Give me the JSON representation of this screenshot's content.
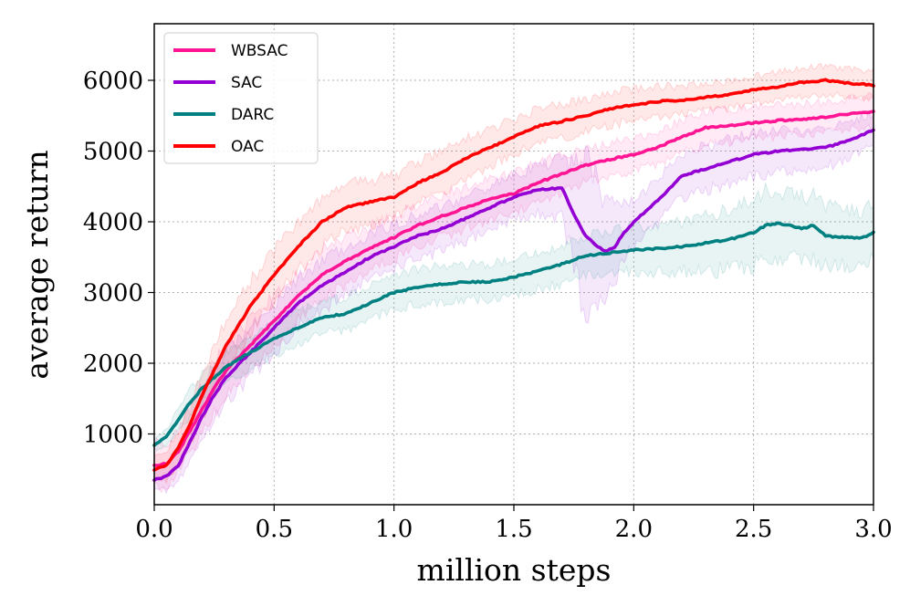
{
  "chart_data": {
    "type": "line",
    "title": "",
    "xlabel": "million steps",
    "ylabel": "average return",
    "xlim": [
      0.0,
      3.0
    ],
    "ylim": [
      0,
      6800
    ],
    "xticks": [
      0.0,
      0.5,
      1.0,
      1.5,
      2.0,
      2.5,
      3.0
    ],
    "xtick_labels": [
      "0.0",
      "0.5",
      "1.0",
      "1.5",
      "2.0",
      "2.5",
      "3.0"
    ],
    "yticks": [
      1000,
      2000,
      3000,
      4000,
      5000,
      6000
    ],
    "ytick_labels": [
      "1000",
      "2000",
      "3000",
      "4000",
      "5000",
      "6000"
    ],
    "grid": true,
    "legend_position": "top-left",
    "series": [
      {
        "name": "WBSAC",
        "color": "#ff1493",
        "x": [
          0,
          0.05,
          0.1,
          0.15,
          0.2,
          0.25,
          0.3,
          0.4,
          0.5,
          0.6,
          0.7,
          0.8,
          0.9,
          1.0,
          1.1,
          1.2,
          1.3,
          1.4,
          1.5,
          1.6,
          1.7,
          1.8,
          1.9,
          2.0,
          2.1,
          2.2,
          2.3,
          2.4,
          2.5,
          2.6,
          2.7,
          2.8,
          2.9,
          3.0
        ],
        "y": [
          550,
          580,
          750,
          1050,
          1350,
          1650,
          1900,
          2250,
          2600,
          2950,
          3250,
          3450,
          3620,
          3780,
          3950,
          4080,
          4200,
          4320,
          4400,
          4550,
          4680,
          4800,
          4880,
          4950,
          5050,
          5200,
          5330,
          5360,
          5400,
          5430,
          5450,
          5480,
          5530,
          5560
        ],
        "band": [
          400,
          400,
          350,
          400,
          450,
          450,
          450,
          450,
          450,
          450,
          450,
          420,
          400,
          380,
          380,
          380,
          380,
          350,
          350,
          350,
          330,
          300,
          300,
          300,
          300,
          300,
          300,
          300,
          300,
          280,
          280,
          280,
          280,
          280
        ]
      },
      {
        "name": "SAC",
        "color": "#9400d3",
        "x": [
          0,
          0.05,
          0.1,
          0.15,
          0.2,
          0.25,
          0.3,
          0.4,
          0.5,
          0.6,
          0.7,
          0.8,
          0.9,
          1.0,
          1.1,
          1.2,
          1.3,
          1.4,
          1.5,
          1.6,
          1.7,
          1.75,
          1.8,
          1.85,
          1.88,
          1.92,
          1.95,
          2.0,
          2.05,
          2.1,
          2.2,
          2.3,
          2.4,
          2.5,
          2.6,
          2.7,
          2.8,
          2.9,
          3.0
        ],
        "y": [
          350,
          400,
          550,
          900,
          1250,
          1550,
          1800,
          2150,
          2500,
          2850,
          3100,
          3300,
          3500,
          3650,
          3800,
          3900,
          4050,
          4200,
          4350,
          4450,
          4480,
          4100,
          3800,
          3650,
          3580,
          3640,
          3800,
          4000,
          4150,
          4300,
          4650,
          4750,
          4850,
          4950,
          5000,
          5020,
          5050,
          5150,
          5300
        ],
        "band": [
          200,
          250,
          300,
          350,
          400,
          450,
          450,
          450,
          450,
          450,
          450,
          420,
          400,
          400,
          400,
          400,
          400,
          400,
          400,
          450,
          500,
          900,
          1400,
          1200,
          900,
          700,
          500,
          450,
          400,
          400,
          400,
          400,
          400,
          400,
          380,
          350,
          350,
          330,
          300
        ]
      },
      {
        "name": "DARC",
        "color": "#008080",
        "x": [
          0,
          0.05,
          0.1,
          0.15,
          0.2,
          0.25,
          0.3,
          0.4,
          0.5,
          0.6,
          0.7,
          0.8,
          0.9,
          1.0,
          1.1,
          1.2,
          1.3,
          1.4,
          1.5,
          1.6,
          1.7,
          1.8,
          1.9,
          2.0,
          2.1,
          2.2,
          2.3,
          2.4,
          2.5,
          2.55,
          2.6,
          2.65,
          2.7,
          2.75,
          2.8,
          2.85,
          2.9,
          2.95,
          3.0
        ],
        "y": [
          850,
          950,
          1200,
          1450,
          1650,
          1800,
          1950,
          2150,
          2350,
          2500,
          2650,
          2700,
          2850,
          3000,
          3080,
          3120,
          3150,
          3150,
          3220,
          3300,
          3400,
          3520,
          3560,
          3600,
          3620,
          3650,
          3700,
          3750,
          3850,
          3950,
          3980,
          3950,
          3900,
          3950,
          3800,
          3780,
          3780,
          3770,
          3850
        ],
        "band": [
          100,
          150,
          200,
          250,
          250,
          250,
          250,
          300,
          300,
          300,
          300,
          300,
          300,
          300,
          320,
          320,
          320,
          320,
          320,
          330,
          350,
          350,
          380,
          400,
          420,
          450,
          500,
          550,
          600,
          600,
          620,
          600,
          580,
          580,
          550,
          520,
          500,
          500,
          500
        ]
      },
      {
        "name": "OAC",
        "color": "#ff0000",
        "x": [
          0,
          0.05,
          0.1,
          0.15,
          0.2,
          0.25,
          0.3,
          0.4,
          0.5,
          0.6,
          0.7,
          0.8,
          0.9,
          1.0,
          1.1,
          1.2,
          1.3,
          1.4,
          1.5,
          1.6,
          1.7,
          1.8,
          1.9,
          2.0,
          2.1,
          2.2,
          2.3,
          2.4,
          2.5,
          2.6,
          2.7,
          2.8,
          2.9,
          3.0
        ],
        "y": [
          500,
          550,
          800,
          1150,
          1550,
          1900,
          2250,
          2800,
          3250,
          3650,
          4000,
          4200,
          4280,
          4350,
          4550,
          4700,
          4900,
          5050,
          5200,
          5350,
          5420,
          5500,
          5600,
          5650,
          5700,
          5720,
          5760,
          5800,
          5870,
          5910,
          5970,
          6000,
          5960,
          5930
        ],
        "band": [
          250,
          250,
          300,
          350,
          400,
          450,
          450,
          450,
          450,
          450,
          450,
          420,
          400,
          400,
          380,
          380,
          350,
          350,
          320,
          320,
          300,
          300,
          300,
          280,
          280,
          250,
          250,
          250,
          250,
          250,
          250,
          250,
          250,
          250
        ]
      }
    ]
  }
}
